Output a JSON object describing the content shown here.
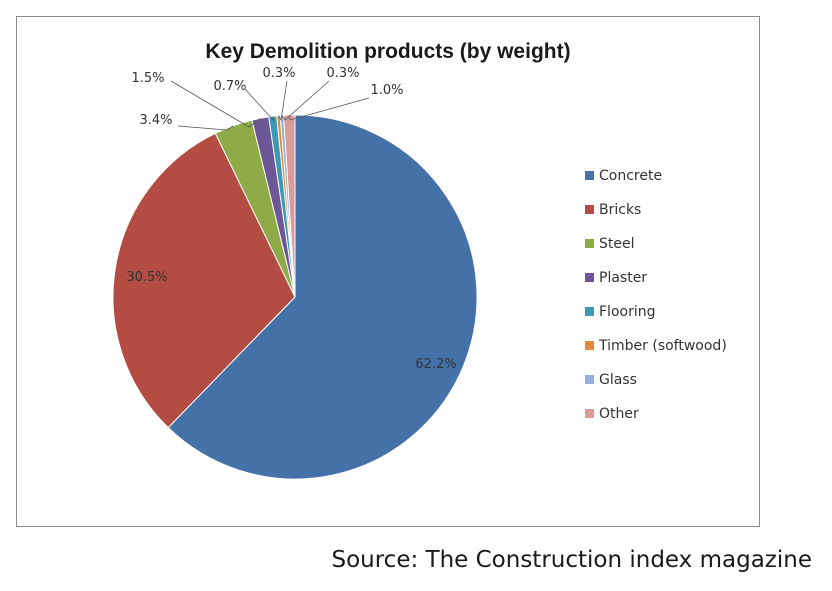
{
  "source": "Source: The Construction index magazine",
  "chart_data": {
    "type": "pie",
    "title": "Key Demolition products (by weight)",
    "legend_position": "right",
    "start_angle_deg": 0,
    "direction": "clockwise",
    "slices": [
      {
        "label": "Concrete",
        "value": 62.2,
        "display": "62.2%",
        "color": "#4472a8"
      },
      {
        "label": "Bricks",
        "value": 30.5,
        "display": "30.5%",
        "color": "#b34c42"
      },
      {
        "label": "Steel",
        "value": 3.4,
        "display": "3.4%",
        "color": "#8fab47"
      },
      {
        "label": "Plaster",
        "value": 1.5,
        "display": "1.5%",
        "color": "#6e5796"
      },
      {
        "label": "Flooring",
        "value": 0.7,
        "display": "0.7%",
        "color": "#3d99b5"
      },
      {
        "label": "Timber (softwood)",
        "value": 0.3,
        "display": "0.3%",
        "color": "#e48a3a"
      },
      {
        "label": "Glass",
        "value": 0.3,
        "display": "0.3%",
        "color": "#92b0d9"
      },
      {
        "label": "Other",
        "value": 1.0,
        "display": "1.0%",
        "color": "#dc9a98"
      }
    ]
  }
}
